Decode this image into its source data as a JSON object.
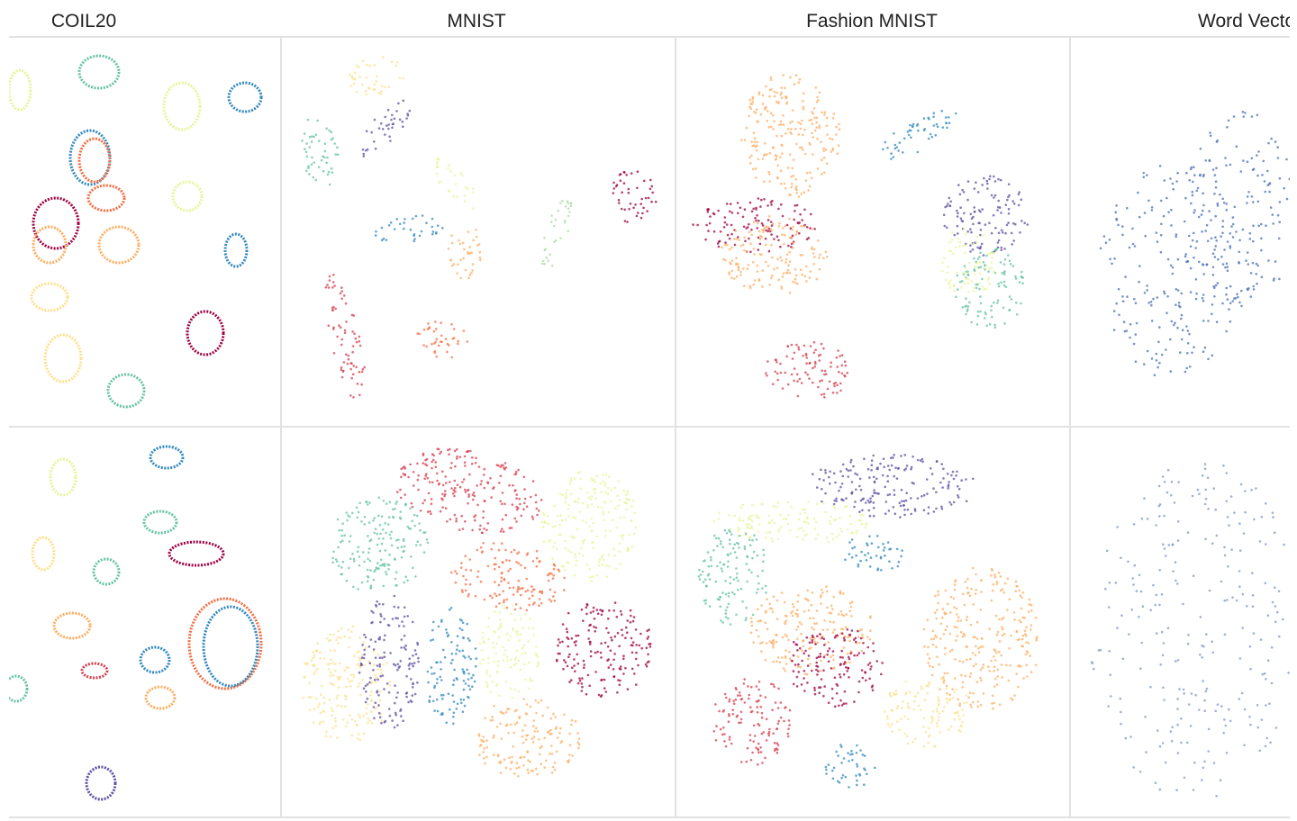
{
  "columns": [
    "COIL20",
    "MNIST",
    "Fashion MNIST",
    "Word Vectors"
  ]
}
